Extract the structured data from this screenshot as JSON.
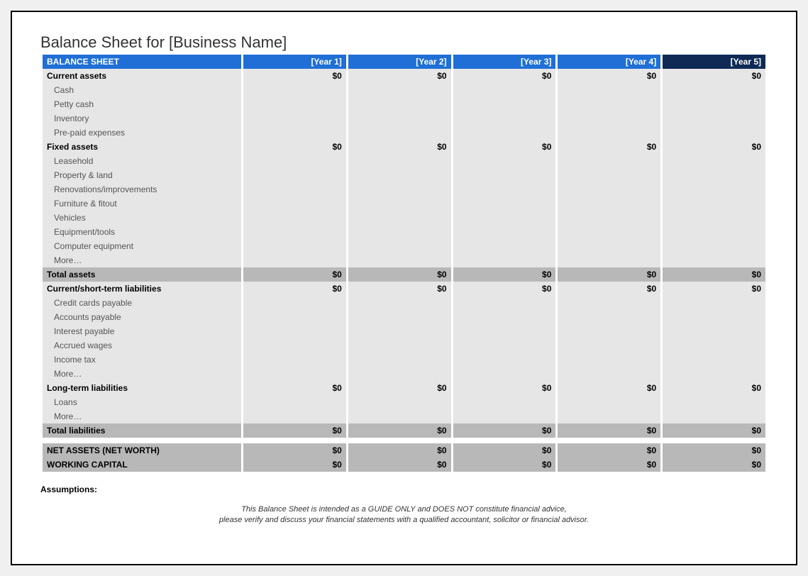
{
  "title": "Balance Sheet for [Business Name]",
  "header": {
    "label": "BALANCE SHEET",
    "years": [
      "[Year 1]",
      "[Year 2]",
      "[Year 3]",
      "[Year 4]",
      "[Year 5]"
    ]
  },
  "colors": {
    "header_blue": "#1f6fd6",
    "header_dark": "#0e2a55",
    "row_light": "#e6e6e6",
    "row_total": "#b8b8b8",
    "background": "#ffffff",
    "border": "#000000"
  },
  "rows": [
    {
      "type": "subtotal",
      "label": "Current assets",
      "values": [
        "$0",
        "$0",
        "$0",
        "$0",
        "$0"
      ]
    },
    {
      "type": "detail",
      "label": "Cash",
      "values": [
        "",
        "",
        "",
        "",
        ""
      ]
    },
    {
      "type": "detail",
      "label": "Petty cash",
      "values": [
        "",
        "",
        "",
        "",
        ""
      ]
    },
    {
      "type": "detail",
      "label": "Inventory",
      "values": [
        "",
        "",
        "",
        "",
        ""
      ]
    },
    {
      "type": "detail",
      "label": "Pre-paid expenses",
      "values": [
        "",
        "",
        "",
        "",
        ""
      ]
    },
    {
      "type": "subtotal",
      "label": "Fixed assets",
      "values": [
        "$0",
        "$0",
        "$0",
        "$0",
        "$0"
      ]
    },
    {
      "type": "detail",
      "label": "Leasehold",
      "values": [
        "",
        "",
        "",
        "",
        ""
      ]
    },
    {
      "type": "detail",
      "label": "Property & land",
      "values": [
        "",
        "",
        "",
        "",
        ""
      ]
    },
    {
      "type": "detail",
      "label": "Renovations/improvements",
      "values": [
        "",
        "",
        "",
        "",
        ""
      ]
    },
    {
      "type": "detail",
      "label": "Furniture & fitout",
      "values": [
        "",
        "",
        "",
        "",
        ""
      ]
    },
    {
      "type": "detail",
      "label": "Vehicles",
      "values": [
        "",
        "",
        "",
        "",
        ""
      ]
    },
    {
      "type": "detail",
      "label": "Equipment/tools",
      "values": [
        "",
        "",
        "",
        "",
        ""
      ]
    },
    {
      "type": "detail",
      "label": "Computer equipment",
      "values": [
        "",
        "",
        "",
        "",
        ""
      ]
    },
    {
      "type": "detail",
      "label": "More…",
      "values": [
        "",
        "",
        "",
        "",
        ""
      ]
    },
    {
      "type": "total",
      "label": "Total assets",
      "values": [
        "$0",
        "$0",
        "$0",
        "$0",
        "$0"
      ]
    },
    {
      "type": "subtotal",
      "label": "Current/short-term liabilities",
      "values": [
        "$0",
        "$0",
        "$0",
        "$0",
        "$0"
      ]
    },
    {
      "type": "detail",
      "label": "Credit cards payable",
      "values": [
        "",
        "",
        "",
        "",
        ""
      ]
    },
    {
      "type": "detail",
      "label": "Accounts payable",
      "values": [
        "",
        "",
        "",
        "",
        ""
      ]
    },
    {
      "type": "detail",
      "label": "Interest payable",
      "values": [
        "",
        "",
        "",
        "",
        ""
      ]
    },
    {
      "type": "detail",
      "label": "Accrued wages",
      "values": [
        "",
        "",
        "",
        "",
        ""
      ]
    },
    {
      "type": "detail",
      "label": "Income tax",
      "values": [
        "",
        "",
        "",
        "",
        ""
      ]
    },
    {
      "type": "detail",
      "label": "More…",
      "values": [
        "",
        "",
        "",
        "",
        ""
      ]
    },
    {
      "type": "subtotal",
      "label": "Long-term liabilities",
      "values": [
        "$0",
        "$0",
        "$0",
        "$0",
        "$0"
      ]
    },
    {
      "type": "detail",
      "label": "Loans",
      "values": [
        "",
        "",
        "",
        "",
        ""
      ]
    },
    {
      "type": "detail",
      "label": "More…",
      "values": [
        "",
        "",
        "",
        "",
        ""
      ]
    },
    {
      "type": "total",
      "label": "Total liabilities",
      "values": [
        "$0",
        "$0",
        "$0",
        "$0",
        "$0"
      ]
    },
    {
      "type": "spacer"
    },
    {
      "type": "total",
      "label": "NET ASSETS (NET WORTH)",
      "values": [
        "$0",
        "$0",
        "$0",
        "$0",
        "$0"
      ]
    },
    {
      "type": "total",
      "label": "WORKING CAPITAL",
      "values": [
        "$0",
        "$0",
        "$0",
        "$0",
        "$0"
      ]
    }
  ],
  "assumptions_label": "Assumptions:",
  "disclaimer_line1": "This Balance Sheet is intended as a GUIDE ONLY and DOES NOT constitute financial advice,",
  "disclaimer_line2": "please verify and discuss your financial statements with a qualified accountant, solicitor or financial advisor."
}
